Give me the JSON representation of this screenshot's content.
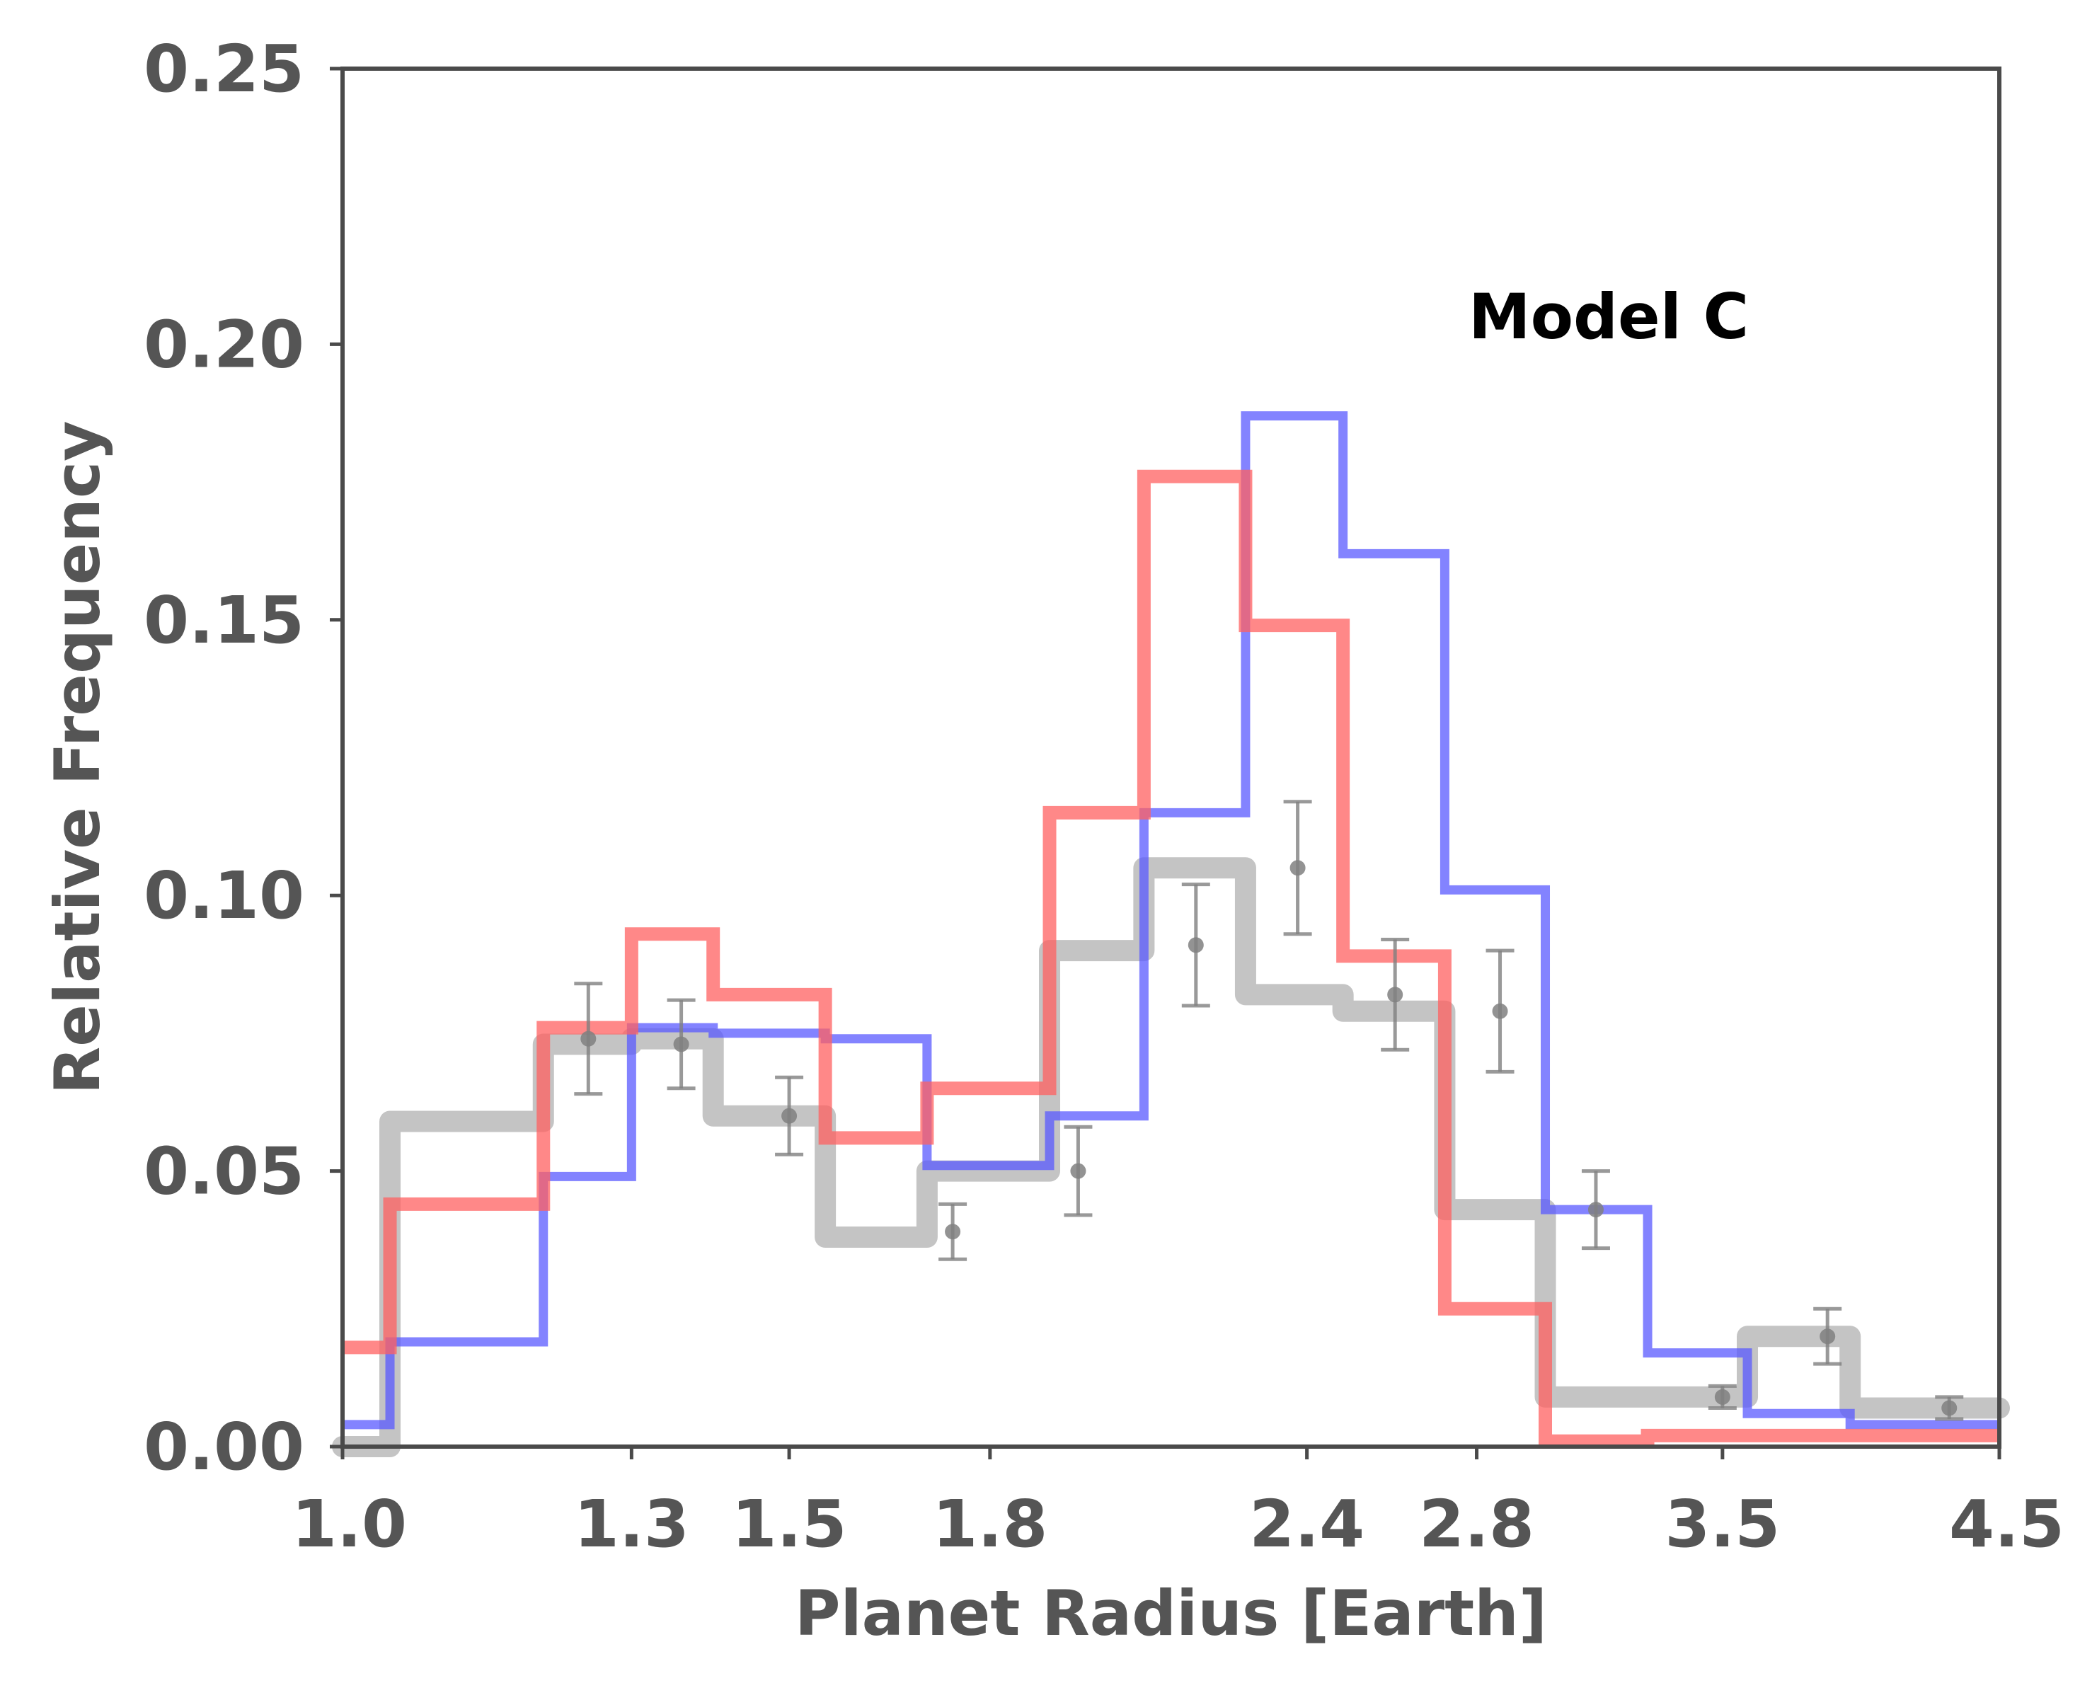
{
  "chart_data": {
    "type": "step",
    "title": "",
    "annotation": "Model C",
    "xlabel": "Planet Radius [Earth]",
    "ylabel": "Relative Frequency",
    "x_scale": "log",
    "xlim": [
      1.0,
      4.5
    ],
    "ylim": [
      0,
      0.25
    ],
    "x_ticks": [
      1.0,
      1.3,
      1.5,
      1.8,
      2.4,
      2.8,
      3.5,
      4.5
    ],
    "x_tick_labels": [
      "1.0",
      "1.3",
      "1.5",
      "1.8",
      "2.4",
      "2.8",
      "3.5",
      "4.5"
    ],
    "y_ticks": [
      0.0,
      0.05,
      0.1,
      0.15,
      0.2,
      0.25
    ],
    "y_tick_labels": [
      "0.00",
      "0.05",
      "0.10",
      "0.15",
      "0.20",
      "0.25"
    ],
    "grid": false,
    "legend": "none",
    "bin_edges": [
      1.0,
      1.044,
      1.2,
      1.3,
      1.4,
      1.55,
      1.7,
      1.9,
      2.07,
      2.27,
      2.48,
      2.72,
      2.98,
      3.27,
      3.58,
      3.93,
      4.5
    ],
    "series": [
      {
        "color": "#5a5aff",
        "values": [
          0.004,
          0.019,
          0.049,
          0.076,
          0.075,
          0.074,
          0.051,
          0.06,
          0.115,
          0.187,
          0.162,
          0.101,
          0.043,
          0.017,
          0.006,
          0.004
        ]
      },
      {
        "color": "#ff6060",
        "values": [
          0.018,
          0.044,
          0.076,
          0.093,
          0.082,
          0.056,
          0.065,
          0.115,
          0.176,
          0.149,
          0.089,
          0.025,
          0.001,
          0.002,
          0.002,
          0.002
        ]
      },
      {
        "color": "#b0b0b0",
        "values": [
          0.0,
          0.059,
          0.073,
          0.074,
          0.06,
          0.038,
          0.05,
          0.09,
          0.105,
          0.082,
          0.079,
          0.043,
          0.009,
          0.009,
          0.02,
          0.007
        ]
      }
    ],
    "error_points": {
      "color": "#808080",
      "x": [
        1.25,
        1.36,
        1.5,
        1.74,
        1.95,
        2.17,
        2.38,
        2.6,
        2.86,
        3.12,
        3.5,
        3.85,
        4.3
      ],
      "y": [
        0.074,
        0.073,
        0.06,
        0.039,
        0.05,
        0.091,
        0.105,
        0.082,
        0.079,
        0.043,
        0.009,
        0.02,
        0.007
      ],
      "err": [
        0.01,
        0.008,
        0.007,
        0.005,
        0.008,
        0.011,
        0.012,
        0.01,
        0.011,
        0.007,
        0.002,
        0.005,
        0.002
      ]
    }
  }
}
